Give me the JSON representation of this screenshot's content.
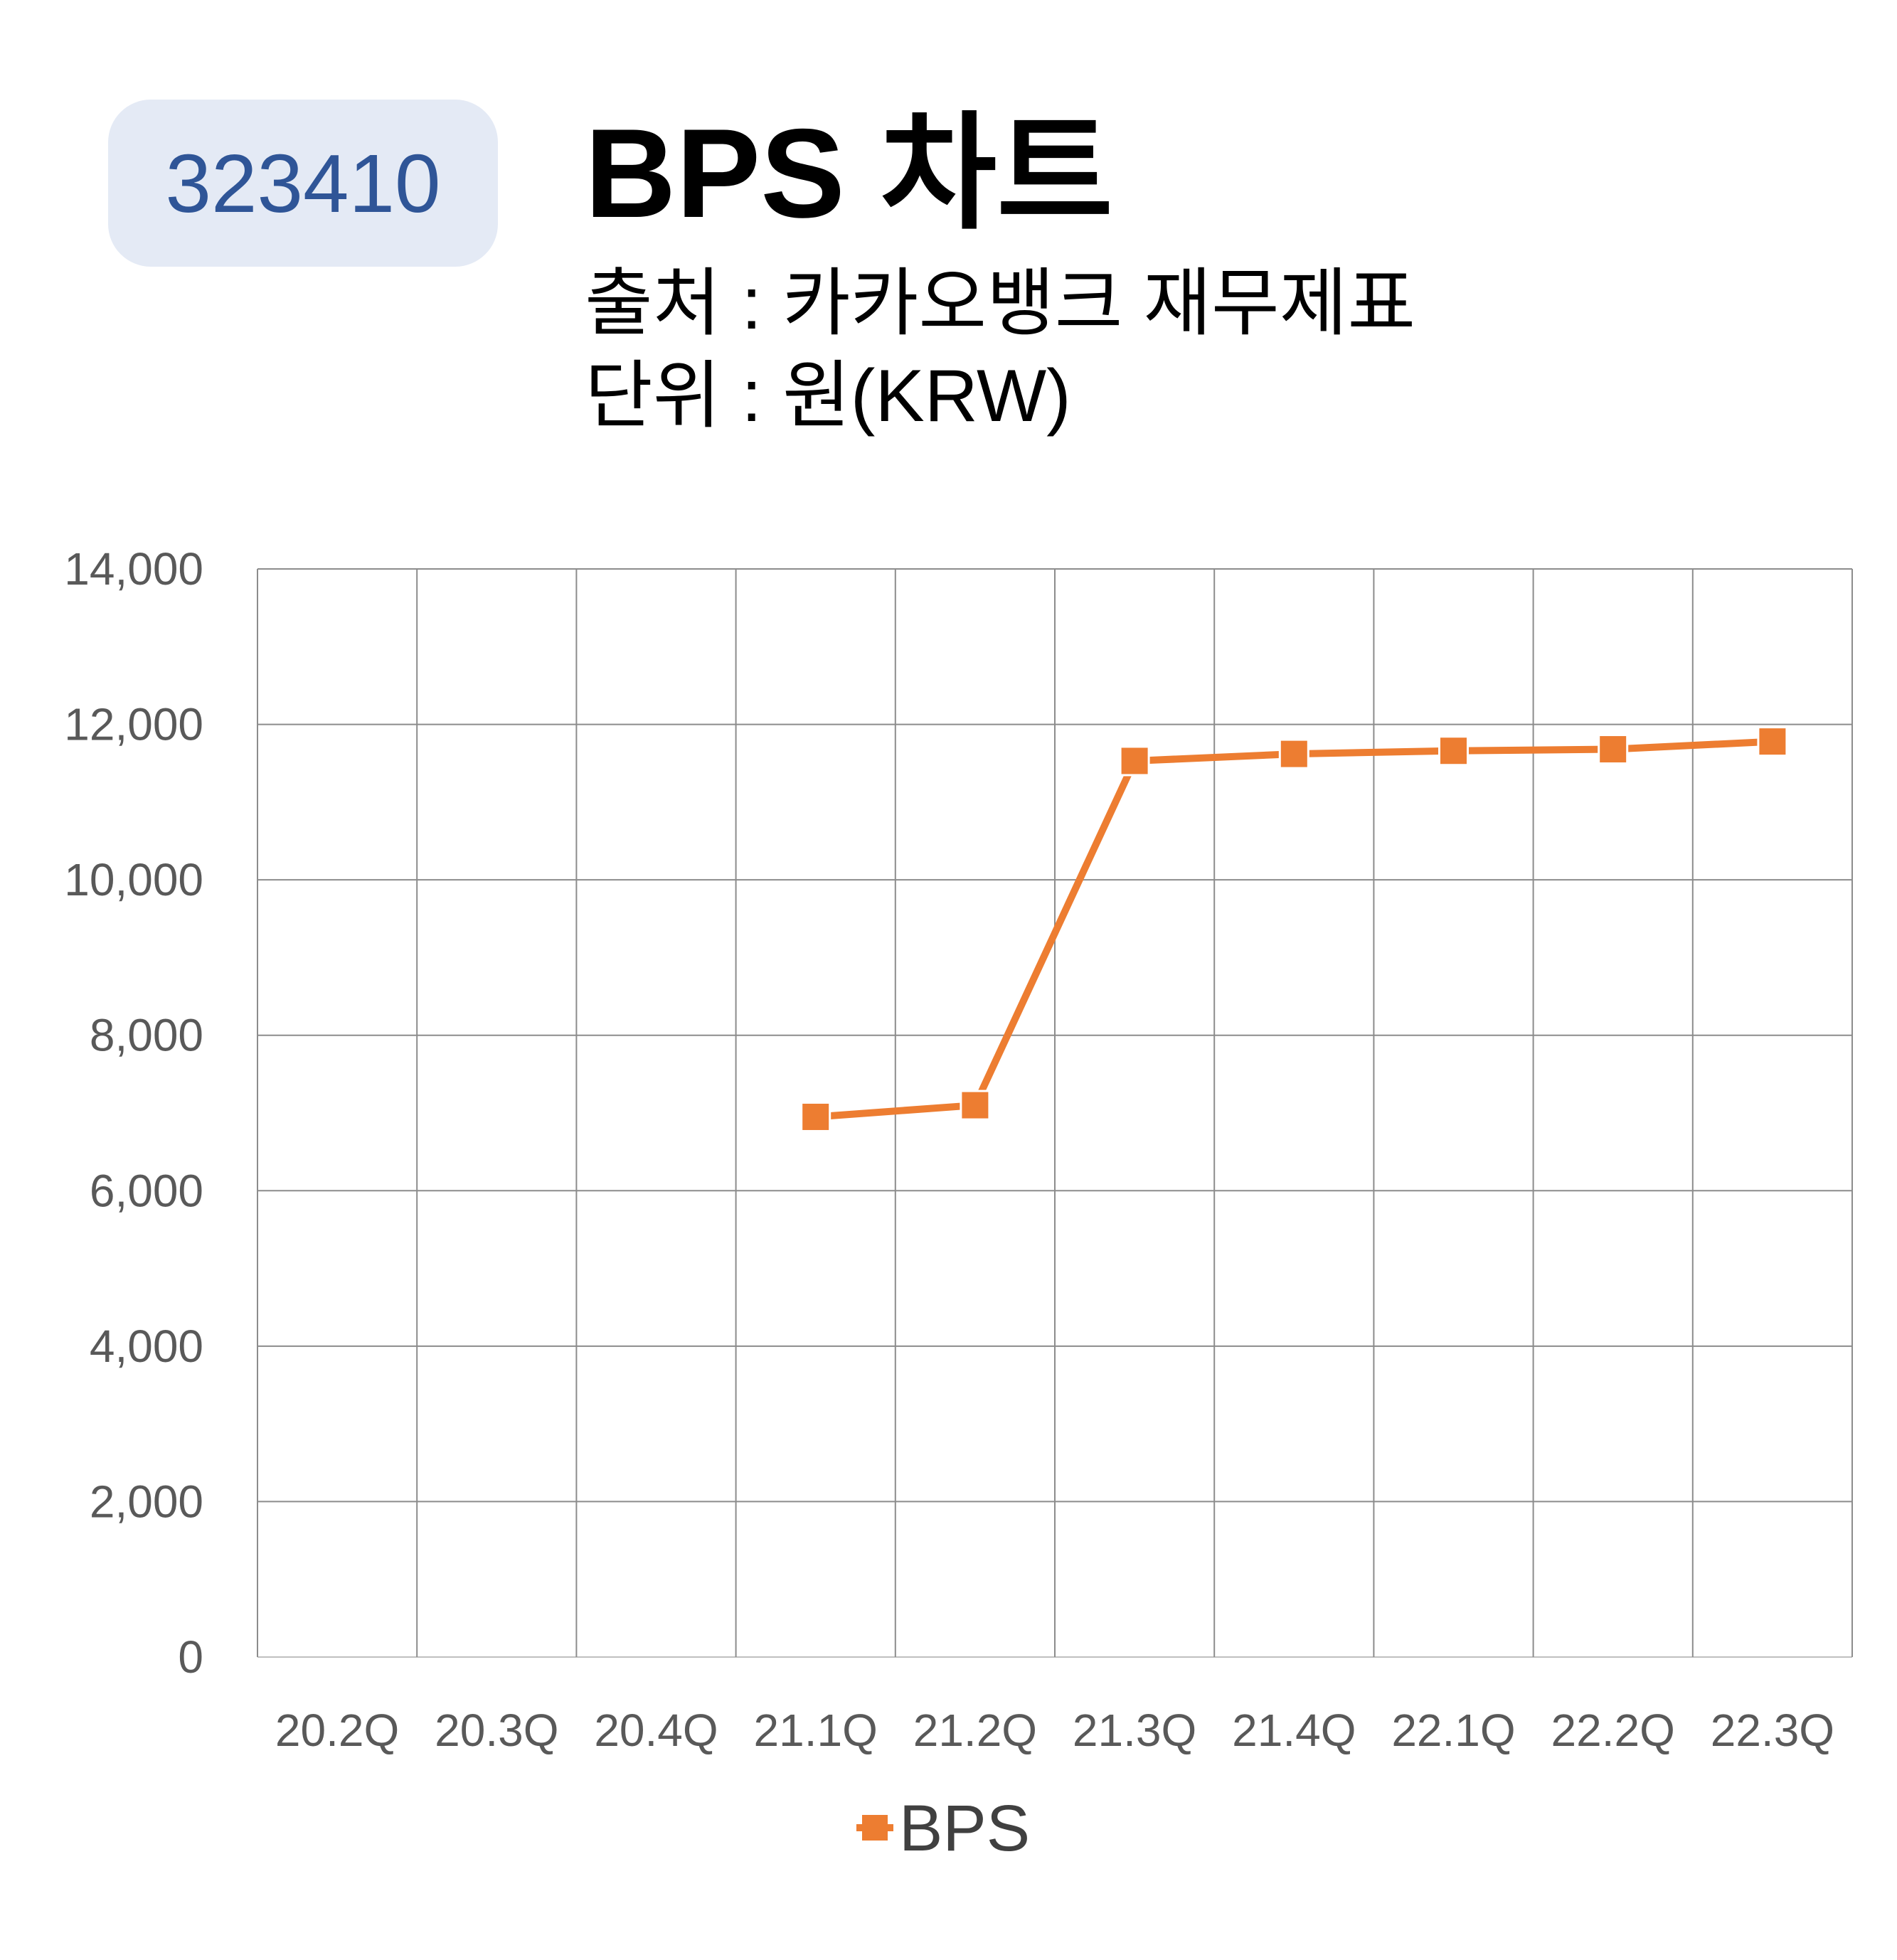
{
  "badge": {
    "code": "323410"
  },
  "header": {
    "title": "BPS 차트",
    "source": "출처 : 카카오뱅크 재무제표",
    "unit": "단위 : 원(KRW)"
  },
  "colors": {
    "series": "#ed7d31",
    "grid": "#8c8c8c",
    "tick": "#595959",
    "badge_bg": "#e4eaf5",
    "badge_text": "#2f5597"
  },
  "chart_data": {
    "type": "line",
    "categories": [
      "20.2Q",
      "20.3Q",
      "20.4Q",
      "21.1Q",
      "21.2Q",
      "21.3Q",
      "21.4Q",
      "22.1Q",
      "22.2Q",
      "22.3Q"
    ],
    "series": [
      {
        "name": "BPS",
        "values": [
          null,
          null,
          null,
          6950,
          7100,
          11530,
          11620,
          11660,
          11680,
          11780
        ]
      }
    ],
    "yticks": [
      "0",
      "2,000",
      "4,000",
      "6,000",
      "8,000",
      "10,000",
      "12,000",
      "14,000"
    ],
    "ylim": [
      0,
      14000
    ],
    "grid": true,
    "legend": "bottom",
    "marker": "square"
  }
}
